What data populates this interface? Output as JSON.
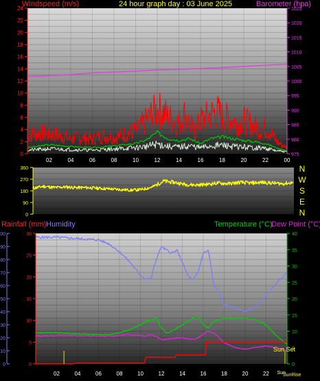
{
  "header": {
    "wind_label": "Windspeed (m/s)",
    "title": "24 hour graph day : 03 June 2025",
    "baro_label": "Barometer (hpa)"
  },
  "lower_header": {
    "rain_label": "Rainfall (mm)",
    "humidity_label": "Humidity",
    "temp_label": "Temperature (°C)",
    "dew_label": "Dew Point (°C)"
  },
  "wind_direction_labels": [
    "N",
    "W",
    "S",
    "E",
    "N"
  ],
  "sun_labels": {
    "sunset": "Sun Set",
    "sunrise": "SunRise"
  },
  "colors": {
    "wind_axis": "#ff2020",
    "baro": "#e040e0",
    "title": "#ffff00",
    "gust": "#ff0000",
    "avg_wind": "#00c000",
    "wind_min": "#d8f0d8",
    "direction": "#ffff00",
    "humidity": "#7b7bff",
    "temperature": "#00d000",
    "dewpoint": "#e020e0",
    "rain": "#ff0000",
    "sun": "#c8c800"
  },
  "chart_data": [
    {
      "type": "line",
      "name": "wind-barometer",
      "x_ticks": [
        "02",
        "04",
        "06",
        "08",
        "10",
        "12",
        "14",
        "16",
        "18",
        "20",
        "22",
        "00"
      ],
      "ylim_left": [
        0,
        24
      ],
      "yticks_left": [
        0,
        2,
        4,
        6,
        8,
        10,
        12,
        14,
        16,
        18,
        20,
        22,
        24
      ],
      "ylim_right": [
        975,
        1025
      ],
      "yticks_right": [
        975,
        980,
        985,
        990,
        995,
        1000,
        1005,
        1010,
        1015,
        1020,
        1025
      ],
      "series": [
        {
          "name": "Barometer",
          "axis": "right",
          "x": [
            0,
            2,
            4,
            6,
            8,
            10,
            12,
            14,
            16,
            18,
            20,
            22,
            24
          ],
          "values": [
            1001.5,
            1001.8,
            1002.2,
            1002.8,
            1003.1,
            1003.4,
            1003.8,
            1004.0,
            1004.3,
            1004.6,
            1005.0,
            1005.4,
            1005.8
          ]
        },
        {
          "name": "Gust",
          "axis": "left",
          "x": [
            0,
            1,
            2,
            3,
            4,
            5,
            6,
            7,
            8,
            9,
            10,
            10.5,
            11,
            11.5,
            12,
            12.5,
            13,
            13.5,
            14,
            14.5,
            15,
            15.5,
            16,
            16.5,
            17,
            17.5,
            18,
            18.5,
            19,
            19.5,
            20,
            20.5,
            21,
            21.5,
            22,
            22.5,
            23,
            23.5,
            24
          ],
          "values": [
            3,
            3.5,
            3.2,
            3,
            2.5,
            2.6,
            2.4,
            3,
            2.7,
            3.2,
            3.8,
            4.5,
            5.5,
            6.5,
            7.2,
            7,
            6,
            5.5,
            5,
            6.5,
            5,
            3.5,
            5.5,
            6,
            6.5,
            7,
            6.2,
            5.8,
            5.5,
            5,
            5.5,
            5,
            4.5,
            4,
            4.2,
            3.5,
            2,
            1.5,
            1
          ]
        },
        {
          "name": "Average",
          "axis": "left",
          "x": [
            0,
            2,
            4,
            6,
            8,
            10,
            11,
            12,
            13,
            14,
            15,
            16,
            17,
            18,
            19,
            20,
            21,
            22,
            23,
            24
          ],
          "values": [
            1,
            1.5,
            1.2,
            1,
            1.3,
            1.7,
            2.3,
            3.5,
            2.5,
            2.2,
            2.5,
            1.7,
            2.5,
            2.8,
            2.5,
            2.2,
            2,
            1.7,
            1,
            0.5
          ]
        },
        {
          "name": "Wind",
          "axis": "left",
          "x": [
            0,
            2,
            4,
            6,
            8,
            10,
            11,
            12,
            13,
            14,
            15,
            16,
            17,
            18,
            19,
            20,
            21,
            22,
            23,
            24
          ],
          "values": [
            0.6,
            0.8,
            0.7,
            0.6,
            0.8,
            1,
            1.2,
            1.6,
            1.2,
            1.1,
            1.3,
            1,
            1.3,
            1.4,
            1.2,
            1.1,
            1,
            0.9,
            0.5,
            0.3
          ]
        }
      ]
    },
    {
      "type": "line",
      "name": "wind-direction",
      "ylim": [
        0,
        360
      ],
      "yticks": [
        0,
        90,
        180,
        270,
        360
      ],
      "series": [
        {
          "name": "Direction",
          "x": [
            0,
            1,
            2,
            3,
            4,
            5,
            6,
            7,
            8,
            9,
            10,
            11,
            12,
            13,
            14,
            15,
            16,
            17,
            18,
            19,
            20,
            21,
            22,
            23,
            24
          ],
          "values": [
            200,
            215,
            205,
            210,
            205,
            205,
            200,
            195,
            190,
            185,
            190,
            210,
            255,
            245,
            230,
            225,
            230,
            240,
            235,
            245,
            240,
            245,
            240,
            235,
            245
          ]
        }
      ]
    },
    {
      "type": "line",
      "name": "temperature-humidity-rain",
      "x_ticks": [
        "02",
        "04",
        "06",
        "08",
        "10",
        "12",
        "14",
        "16",
        "18",
        "20",
        "22",
        "Sun"
      ],
      "ylim_humidity": [
        0,
        100
      ],
      "yticks_humidity": [
        0,
        10,
        20,
        30,
        40,
        50,
        60,
        70,
        80,
        90,
        100
      ],
      "ylim_rain": [
        0,
        30
      ],
      "yticks_rain": [
        0,
        5,
        10,
        15,
        20,
        25,
        30
      ],
      "ylim_temp": [
        0,
        40
      ],
      "yticks_temp": [
        0,
        5,
        10,
        15,
        20,
        25,
        30,
        35,
        40
      ],
      "series": [
        {
          "name": "Humidity",
          "axis": "humidity",
          "x": [
            0,
            2,
            4,
            6,
            7,
            8,
            9,
            10,
            10.5,
            11,
            11.5,
            12,
            12.5,
            13,
            13.5,
            14,
            14.5,
            15,
            15.5,
            16,
            16.5,
            17,
            17.5,
            18,
            19,
            20,
            21,
            22,
            23,
            24
          ],
          "values": [
            97,
            97,
            96,
            95,
            92,
            86,
            78,
            68,
            65,
            65,
            80,
            90,
            87,
            85,
            87,
            78,
            68,
            64,
            70,
            85,
            87,
            60,
            55,
            45,
            43,
            40,
            44,
            52,
            62,
            70
          ]
        },
        {
          "name": "Temperature",
          "axis": "temp",
          "x": [
            0,
            2,
            4,
            6,
            7,
            8,
            9,
            10,
            10.5,
            11,
            11.5,
            12,
            12.5,
            13,
            14,
            15,
            15.5,
            16,
            16.5,
            17,
            18,
            19,
            20,
            21,
            22,
            23,
            24
          ],
          "values": [
            9.5,
            9.5,
            9.2,
            9,
            9,
            9.5,
            10.5,
            12,
            13,
            13.5,
            14,
            11,
            9.5,
            10,
            12,
            14,
            14.5,
            12,
            11,
            13,
            14,
            14,
            14,
            13.5,
            12,
            8.5,
            6
          ]
        },
        {
          "name": "Dew Point",
          "axis": "temp",
          "x": [
            0,
            2,
            4,
            6,
            7,
            8,
            9,
            10,
            10.5,
            11,
            11.5,
            12,
            12.5,
            13,
            14,
            15,
            15.5,
            16,
            16.5,
            17,
            17.5,
            18,
            19,
            20,
            21,
            22,
            23,
            24
          ],
          "values": [
            8.5,
            8.7,
            8.7,
            8.5,
            8.5,
            8.8,
            8.9,
            8.8,
            8.5,
            9,
            8.5,
            7.5,
            7.5,
            7.8,
            8,
            7.5,
            8,
            9,
            10,
            9.5,
            8,
            6.5,
            5,
            4.5,
            5,
            5.5,
            5,
            4
          ]
        },
        {
          "name": "Rainfall",
          "axis": "rain",
          "x": [
            0,
            3.5,
            4,
            10.4,
            10.5,
            13.3,
            13.4,
            16.2,
            16.3,
            24
          ],
          "values": [
            0,
            0,
            0.2,
            0.2,
            1.5,
            1.5,
            2,
            2,
            5,
            5
          ]
        }
      ],
      "sun_lines_x": [
        2.7,
        23.8
      ]
    }
  ]
}
